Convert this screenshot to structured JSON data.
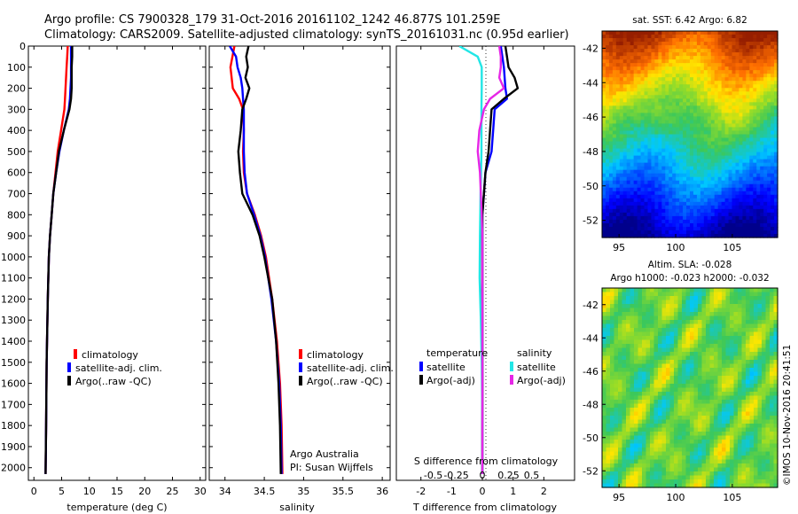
{
  "title_line1": "Argo profile: CS 7900328_179 31-Oct-2016 20161102_1242 46.877S 101.259E",
  "title_line2": "Climatology: CARS2009. Satellite-adjusted climatology: synTS_20161031.nc (0.95d earlier)",
  "colors": {
    "climatology": "#ff0000",
    "satellite": "#0000ff",
    "argo": "#000000",
    "salinity_satellite": "#22e6e6",
    "salinity_argo": "#e626e6"
  },
  "chart_data": [
    {
      "type": "line",
      "panel": "temperature",
      "xlabel": "temperature (deg C)",
      "xlim": [
        -1,
        31
      ],
      "ylim": [
        2060,
        0
      ],
      "x_ticks": [
        0,
        5,
        10,
        15,
        20,
        25,
        30
      ],
      "y_ticks": [
        0,
        100,
        200,
        300,
        400,
        500,
        600,
        700,
        800,
        900,
        1000,
        1100,
        1200,
        1300,
        1400,
        1500,
        1600,
        1700,
        1800,
        1900,
        2000
      ],
      "legend": [
        "climatology",
        "satellite-adj. clim.",
        "Argo(..raw -QC)"
      ],
      "series": [
        {
          "name": "climatology",
          "color": "#ff0000",
          "depth": [
            0,
            50,
            100,
            150,
            200,
            250,
            300,
            400,
            500,
            600,
            700,
            800,
            900,
            1000,
            1200,
            1500,
            1800,
            2030
          ],
          "values": [
            6.1,
            6.0,
            5.9,
            5.8,
            5.7,
            5.6,
            5.5,
            4.9,
            4.3,
            3.9,
            3.5,
            3.2,
            2.9,
            2.7,
            2.5,
            2.3,
            2.2,
            2.1
          ]
        },
        {
          "name": "satellite-adj. clim.",
          "color": "#0000ff",
          "depth": [
            0,
            50,
            100,
            150,
            200,
            250,
            300,
            400,
            500,
            600,
            700,
            800,
            900,
            1000,
            1200,
            1500,
            1800,
            2030
          ],
          "values": [
            6.7,
            6.7,
            6.7,
            6.7,
            6.6,
            6.5,
            6.3,
            5.4,
            4.6,
            4.0,
            3.5,
            3.2,
            2.9,
            2.7,
            2.5,
            2.3,
            2.2,
            2.1
          ]
        },
        {
          "name": "Argo(..raw -QC)",
          "color": "#000000",
          "depth": [
            0,
            50,
            100,
            150,
            200,
            250,
            300,
            400,
            500,
            600,
            700,
            800,
            900,
            1000,
            1200,
            1500,
            1800,
            2030
          ],
          "values": [
            6.9,
            6.9,
            6.8,
            6.8,
            6.8,
            6.7,
            6.4,
            5.4,
            4.5,
            4.0,
            3.5,
            3.2,
            2.9,
            2.7,
            2.5,
            2.3,
            2.2,
            2.1
          ]
        }
      ]
    },
    {
      "type": "line",
      "panel": "salinity",
      "xlabel": "salinity",
      "xlim": [
        33.8,
        36.1
      ],
      "ylim": [
        2060,
        0
      ],
      "x_ticks": [
        34,
        34.5,
        35,
        35.5,
        36
      ],
      "y_ticks": [
        0,
        100,
        200,
        300,
        400,
        500,
        600,
        700,
        800,
        900,
        1000,
        1100,
        1200,
        1300,
        1400,
        1500,
        1600,
        1700,
        1800,
        1900,
        2000
      ],
      "legend": [
        "climatology",
        "satellite-adj. clim.",
        "Argo(..raw -QC)"
      ],
      "annotation": [
        "Argo Australia",
        "PI: Susan Wijffels"
      ],
      "series": [
        {
          "name": "climatology",
          "color": "#ff0000",
          "depth": [
            0,
            100,
            200,
            250,
            300,
            400,
            500,
            600,
            700,
            800,
            900,
            1000,
            1200,
            1400,
            1600,
            1800,
            2030
          ],
          "values": [
            34.12,
            34.07,
            34.1,
            34.18,
            34.23,
            34.24,
            34.23,
            34.24,
            34.28,
            34.38,
            34.46,
            34.52,
            34.6,
            34.66,
            34.7,
            34.72,
            34.73
          ]
        },
        {
          "name": "satellite-adj. clim.",
          "color": "#0000ff",
          "depth": [
            0,
            50,
            100,
            150,
            200,
            250,
            300,
            400,
            500,
            600,
            700,
            800,
            900,
            1000,
            1200,
            1400,
            1600,
            1800,
            2030
          ],
          "values": [
            34.06,
            34.14,
            34.16,
            34.2,
            34.22,
            34.23,
            34.24,
            34.24,
            34.24,
            34.25,
            34.28,
            34.37,
            34.45,
            34.51,
            34.59,
            34.65,
            34.69,
            34.71,
            34.72
          ]
        },
        {
          "name": "Argo(..raw -QC)",
          "color": "#000000",
          "depth": [
            0,
            50,
            100,
            150,
            200,
            250,
            300,
            400,
            500,
            600,
            700,
            800,
            900,
            1000,
            1200,
            1400,
            1600,
            1800,
            2030
          ],
          "values": [
            34.3,
            34.27,
            34.29,
            34.26,
            34.31,
            34.27,
            34.22,
            34.2,
            34.17,
            34.19,
            34.22,
            34.35,
            34.44,
            34.5,
            34.6,
            34.65,
            34.68,
            34.7,
            34.71
          ]
        }
      ]
    },
    {
      "type": "line",
      "panel": "difference",
      "xlabel": "T difference from climatology",
      "x_top_label": "S difference from climatology",
      "xlim": [
        -2.8,
        3.0
      ],
      "ylim": [
        2060,
        0
      ],
      "x_ticks": [
        -2,
        -1,
        0,
        1,
        2
      ],
      "x_ticks_top": [
        "-0.5",
        "-0.25",
        "0",
        "0.25",
        "0.5"
      ],
      "y_ticks": [
        0,
        100,
        200,
        300,
        400,
        500,
        600,
        700,
        800,
        900,
        1000,
        1100,
        1200,
        1300,
        1400,
        1500,
        1600,
        1700,
        1800,
        1900,
        2000
      ],
      "legend_temperature_title": "temperature",
      "legend_salinity_title": "salinity",
      "legend": [
        "satellite",
        "Argo(-adj)",
        "satellite",
        "Argo(-adj)"
      ],
      "series": [
        {
          "name": "temperature satellite",
          "color": "#0000ff",
          "depth": [
            0,
            100,
            200,
            250,
            300,
            400,
            500,
            600,
            700,
            800,
            900,
            1000,
            1500,
            2030
          ],
          "values": [
            0.6,
            0.7,
            0.75,
            0.8,
            0.4,
            0.35,
            0.3,
            0.1,
            0.05,
            0.0,
            0.0,
            0.0,
            0.0,
            0.0
          ]
        },
        {
          "name": "temperature Argo(-adj)",
          "color": "#000000",
          "depth": [
            0,
            50,
            100,
            150,
            200,
            250,
            300,
            400,
            500,
            600,
            700,
            800,
            900,
            1000,
            1500,
            2030
          ],
          "values": [
            0.75,
            0.8,
            0.85,
            1.05,
            1.15,
            0.7,
            0.3,
            0.25,
            0.2,
            0.1,
            0.05,
            0.0,
            0.0,
            0.0,
            0.0,
            0.0
          ]
        },
        {
          "name": "salinity satellite",
          "color": "#22e6e6",
          "depth": [
            0,
            50,
            100,
            150,
            200,
            300,
            500,
            700,
            900,
            1100,
            1300,
            1500,
            1800,
            2030
          ],
          "values": [
            -0.75,
            -0.15,
            -0.02,
            -0.02,
            -0.02,
            -0.03,
            -0.03,
            -0.06,
            -0.08,
            -0.09,
            -0.05,
            -0.02,
            0.0,
            0.0
          ]
        },
        {
          "name": "salinity Argo(-adj)",
          "color": "#e626e6",
          "depth": [
            0,
            50,
            100,
            150,
            200,
            250,
            300,
            400,
            500,
            600,
            700,
            800,
            900,
            1000,
            1500,
            2030
          ],
          "values": [
            0.55,
            0.6,
            0.6,
            0.55,
            0.7,
            0.25,
            0.05,
            -0.1,
            -0.15,
            -0.08,
            -0.05,
            -0.02,
            0.0,
            0.0,
            0.0,
            0.0
          ]
        }
      ]
    },
    {
      "type": "heatmap",
      "panel": "sst_map",
      "title": "sat. SST: 6.42 Argo: 6.82",
      "xlim": [
        93.5,
        109
      ],
      "ylim": [
        -53,
        -41
      ],
      "x_ticks": [
        95,
        100,
        105
      ],
      "y_ticks": [
        -42,
        -44,
        -46,
        -48,
        -50,
        -52
      ],
      "marker": {
        "lon": 101.259,
        "lat": -46.877
      }
    },
    {
      "type": "heatmap",
      "panel": "sla_map",
      "title_line1": "Altim. SLA: -0.028",
      "title_line2": "Argo h1000: -0.023 h2000: -0.032",
      "xlim": [
        93.5,
        109
      ],
      "ylim": [
        -53,
        -41
      ],
      "x_ticks": [
        95,
        100,
        105
      ],
      "y_ticks": [
        -42,
        -44,
        -46,
        -48,
        -50,
        -52
      ]
    }
  ],
  "credit": "©IMOS 10-Nov-2016 20:41:51"
}
